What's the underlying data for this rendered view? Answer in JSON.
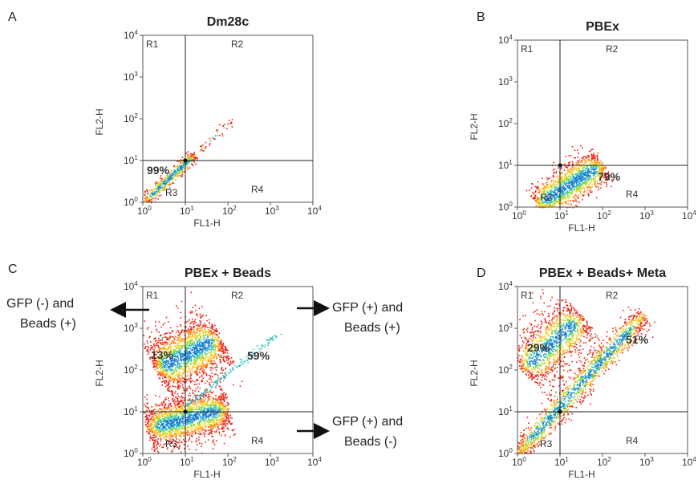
{
  "panels": [
    {
      "letter": "A",
      "title": "Dm28c",
      "x_label": "FL1-H",
      "y_label": "FL2-H",
      "regions": [
        "R1",
        "R2",
        "R3",
        "R4"
      ],
      "percentages": [
        "99%"
      ]
    },
    {
      "letter": "B",
      "title": "PBEx",
      "x_label": "FL1-H",
      "y_label": "FL2-H",
      "regions": [
        "R1",
        "R2",
        "R3",
        "R4"
      ],
      "percentages": [
        "79%"
      ]
    },
    {
      "letter": "C",
      "title": "PBEx + Beads",
      "x_label": "FL1-H",
      "y_label": "FL2-H",
      "regions": [
        "R1",
        "R2",
        "R3",
        "R4"
      ],
      "percentages": [
        "13%",
        "59%"
      ]
    },
    {
      "letter": "D",
      "title": "PBEx + Beads+ Meta",
      "x_label": "FL1-H",
      "y_label": "FL2-H",
      "regions": [
        "R1",
        "R2",
        "R3",
        "R4"
      ],
      "percentages": [
        "29%",
        "51%"
      ]
    }
  ],
  "axis": {
    "base": "10",
    "exponents": [
      "0",
      "1",
      "2",
      "3",
      "4"
    ]
  },
  "annotations": [
    {
      "lines": [
        "GFP (-) and",
        "Beads (+)"
      ]
    },
    {
      "lines": [
        "GFP (+) and",
        "Beads (+)"
      ]
    },
    {
      "lines": [
        "GFP (+) and",
        "Beads (-)"
      ]
    }
  ]
}
